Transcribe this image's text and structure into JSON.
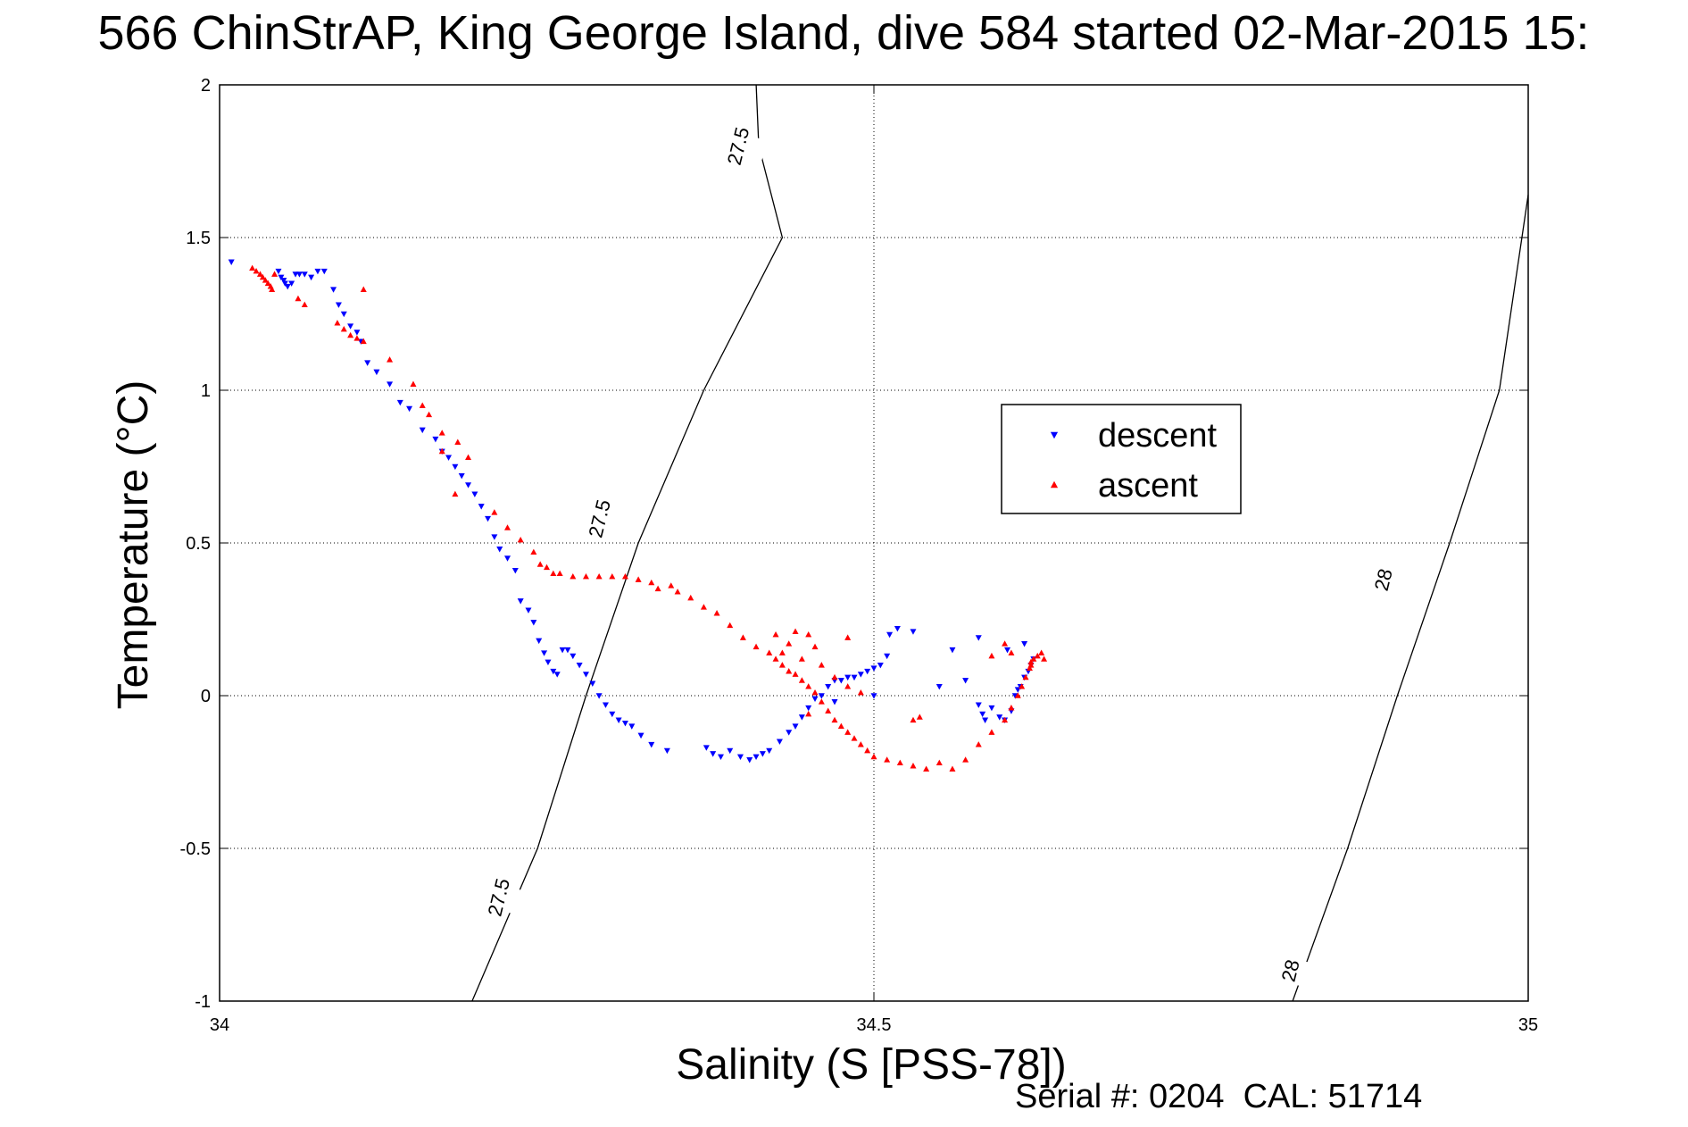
{
  "chart_data": {
    "type": "scatter",
    "title": "566 ChinStrAP, King George Island, dive 584 started 02-Mar-2015 15:",
    "xlabel": "Salinity (S [PSS-78])",
    "ylabel": "Temperature (°C)",
    "xlim": [
      34,
      35
    ],
    "ylim": [
      -1,
      2
    ],
    "grid": true,
    "x_ticks": [
      34,
      34.5,
      35
    ],
    "x_tick_labels": [
      "34",
      "34.5",
      "35"
    ],
    "y_ticks": [
      -1,
      -0.5,
      0,
      0.5,
      1,
      1.5,
      2
    ],
    "y_tick_labels": [
      "-1",
      "-0.5",
      "0",
      "0.5",
      "1",
      "1.5",
      "2"
    ],
    "legend": {
      "position": "right-center",
      "entries": [
        {
          "name": "descent",
          "color": "#0000ff",
          "marker": "triangle-down"
        },
        {
          "name": "ascent",
          "color": "#ff0000",
          "marker": "triangle-up"
        }
      ]
    },
    "annotation": "Serial #: 0204  CAL: 51714",
    "contours": [
      {
        "level": "27.5",
        "label": "27.5",
        "points": [
          [
            34.193,
            -1.0
          ],
          [
            34.243,
            -0.5
          ],
          [
            34.28,
            0.0
          ],
          [
            34.32,
            0.5
          ],
          [
            34.37,
            1.0
          ],
          [
            34.43,
            1.5
          ],
          [
            34.412,
            1.8
          ],
          [
            34.41,
            2.0
          ]
        ],
        "label_points": [
          [
            34.213,
            -0.66
          ],
          [
            34.29,
            0.58
          ],
          [
            34.396,
            1.8
          ]
        ]
      },
      {
        "level": "28",
        "label": "28",
        "points": [
          [
            34.82,
            -1.0
          ],
          [
            34.862,
            -0.5
          ],
          [
            34.9,
            0.0
          ],
          [
            34.94,
            0.5
          ],
          [
            34.978,
            1.0
          ],
          [
            35.0,
            1.64
          ]
        ],
        "label_points": [
          [
            34.818,
            -0.9
          ],
          [
            34.889,
            0.38
          ]
        ]
      }
    ],
    "series": [
      {
        "name": "descent",
        "color": "#0000ff",
        "marker": "triangle-down",
        "x": [
          34.009,
          34.045,
          34.047,
          34.049,
          34.05,
          34.052,
          34.055,
          34.058,
          34.061,
          34.065,
          34.07,
          34.075,
          34.08,
          34.087,
          34.091,
          34.095,
          34.1,
          34.105,
          34.108,
          34.113,
          34.12,
          34.13,
          34.138,
          34.145,
          34.155,
          34.165,
          34.17,
          34.175,
          34.18,
          34.185,
          34.19,
          34.195,
          34.2,
          34.205,
          34.21,
          34.214,
          34.22,
          34.226,
          34.23,
          34.236,
          34.24,
          34.244,
          34.248,
          34.251,
          34.255,
          34.258,
          34.262,
          34.266,
          34.27,
          34.275,
          34.28,
          34.285,
          34.29,
          34.295,
          34.3,
          34.305,
          34.31,
          34.315,
          34.322,
          34.33,
          34.342,
          34.372,
          34.377,
          34.383,
          34.39,
          34.398,
          34.405,
          34.41,
          34.415,
          34.42,
          34.428,
          34.435,
          34.44,
          34.445,
          34.45,
          34.455,
          34.46,
          34.465,
          34.47,
          34.475,
          34.48,
          34.485,
          34.49,
          34.495,
          34.5,
          34.505,
          34.51,
          34.512,
          34.518,
          34.53,
          34.55,
          34.57,
          34.58,
          34.583,
          34.585,
          34.59,
          34.596,
          34.6,
          34.605,
          34.608,
          34.61,
          34.612,
          34.615,
          34.618,
          34.62,
          34.622,
          34.602,
          34.615,
          34.58,
          34.56,
          34.5,
          34.47
        ],
        "y": [
          1.42,
          1.39,
          1.37,
          1.36,
          1.35,
          1.34,
          1.35,
          1.38,
          1.38,
          1.38,
          1.37,
          1.39,
          1.39,
          1.33,
          1.28,
          1.25,
          1.21,
          1.19,
          1.16,
          1.09,
          1.06,
          1.02,
          0.96,
          0.94,
          0.87,
          0.84,
          0.8,
          0.78,
          0.75,
          0.72,
          0.69,
          0.66,
          0.62,
          0.58,
          0.52,
          0.48,
          0.45,
          0.41,
          0.31,
          0.28,
          0.24,
          0.18,
          0.14,
          0.11,
          0.08,
          0.07,
          0.15,
          0.15,
          0.13,
          0.1,
          0.07,
          0.04,
          0.0,
          -0.03,
          -0.06,
          -0.08,
          -0.09,
          -0.1,
          -0.13,
          -0.16,
          -0.18,
          -0.17,
          -0.19,
          -0.2,
          -0.18,
          -0.2,
          -0.21,
          -0.2,
          -0.19,
          -0.18,
          -0.15,
          -0.12,
          -0.1,
          -0.07,
          -0.04,
          -0.01,
          0.0,
          0.03,
          0.05,
          0.05,
          0.06,
          0.06,
          0.07,
          0.08,
          0.09,
          0.1,
          0.13,
          0.2,
          0.22,
          0.21,
          0.03,
          0.05,
          -0.03,
          -0.06,
          -0.08,
          -0.04,
          -0.07,
          -0.08,
          -0.05,
          0.0,
          0.02,
          0.03,
          0.06,
          0.08,
          0.1,
          0.12,
          0.15,
          0.17,
          0.19,
          0.15,
          0.0,
          -0.02
        ]
      },
      {
        "name": "ascent",
        "color": "#ff0000",
        "marker": "triangle-up",
        "x": [
          34.025,
          34.028,
          34.031,
          34.033,
          34.035,
          34.037,
          34.039,
          34.04,
          34.042,
          34.06,
          34.065,
          34.09,
          34.095,
          34.1,
          34.105,
          34.11,
          34.11,
          34.13,
          34.148,
          34.155,
          34.16,
          34.17,
          34.17,
          34.182,
          34.19,
          34.18,
          34.21,
          34.22,
          34.23,
          34.24,
          34.245,
          34.25,
          34.255,
          34.26,
          34.27,
          34.28,
          34.29,
          34.3,
          34.31,
          34.32,
          34.33,
          34.335,
          34.345,
          34.35,
          34.36,
          34.37,
          34.38,
          34.39,
          34.4,
          34.41,
          34.42,
          34.425,
          34.43,
          34.435,
          34.44,
          34.445,
          34.45,
          34.455,
          34.46,
          34.465,
          34.47,
          34.475,
          34.48,
          34.485,
          34.49,
          34.495,
          34.5,
          34.51,
          34.52,
          34.53,
          34.54,
          34.55,
          34.56,
          34.57,
          34.58,
          34.59,
          34.6,
          34.605,
          34.61,
          34.613,
          34.616,
          34.619,
          34.62,
          34.622,
          34.625,
          34.628,
          34.63,
          34.62,
          34.605,
          34.6,
          34.59,
          34.48,
          34.45,
          34.44,
          34.435,
          34.43,
          34.425,
          34.445,
          34.455,
          34.46,
          34.47,
          34.48,
          34.49,
          34.45,
          34.53,
          34.535
        ],
        "y": [
          1.4,
          1.39,
          1.38,
          1.37,
          1.36,
          1.35,
          1.34,
          1.33,
          1.38,
          1.3,
          1.28,
          1.22,
          1.2,
          1.18,
          1.17,
          1.16,
          1.33,
          1.1,
          1.02,
          0.95,
          0.92,
          0.86,
          0.8,
          0.83,
          0.78,
          0.66,
          0.6,
          0.55,
          0.51,
          0.47,
          0.43,
          0.42,
          0.4,
          0.4,
          0.39,
          0.39,
          0.39,
          0.39,
          0.39,
          0.38,
          0.37,
          0.35,
          0.36,
          0.34,
          0.32,
          0.29,
          0.27,
          0.23,
          0.19,
          0.16,
          0.14,
          0.12,
          0.1,
          0.08,
          0.07,
          0.05,
          0.03,
          0.01,
          -0.02,
          -0.05,
          -0.08,
          -0.1,
          -0.12,
          -0.14,
          -0.16,
          -0.18,
          -0.2,
          -0.21,
          -0.22,
          -0.23,
          -0.24,
          -0.22,
          -0.24,
          -0.21,
          -0.16,
          -0.12,
          -0.08,
          -0.04,
          0.0,
          0.03,
          0.06,
          0.09,
          0.11,
          0.12,
          0.13,
          0.14,
          0.12,
          0.1,
          0.14,
          0.17,
          0.13,
          0.19,
          0.2,
          0.21,
          0.17,
          0.14,
          0.2,
          0.12,
          0.16,
          0.1,
          0.06,
          0.03,
          0.01,
          -0.06,
          -0.08,
          -0.07
        ]
      }
    ]
  }
}
